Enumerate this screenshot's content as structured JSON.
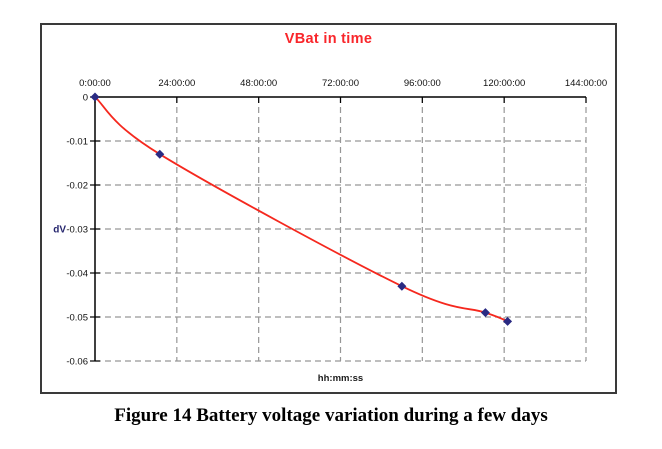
{
  "figure": {
    "caption": "Figure 14 Battery voltage variation during a few days"
  },
  "chart_data": {
    "type": "line",
    "title": "VBat in time",
    "xlabel": "hh:mm:ss",
    "ylabel": "dV",
    "x_axis_position": "top",
    "grid": "dashed",
    "legend": "none",
    "xlim_hours": [
      0,
      144
    ],
    "ylim": [
      -0.06,
      0
    ],
    "x_ticks_hours": [
      0,
      24,
      48,
      72,
      96,
      120,
      144
    ],
    "x_tick_labels": [
      "0:00:00",
      "24:00:00",
      "48:00:00",
      "72:00:00",
      "96:00:00",
      "120:00:00",
      "144:00:00"
    ],
    "y_ticks": [
      0,
      -0.01,
      -0.02,
      -0.03,
      -0.04,
      -0.05,
      -0.06
    ],
    "y_tick_labels": [
      "0",
      "-0.01",
      "-0.02",
      "-0.03",
      "-0.04",
      "-0.05",
      "-0.06"
    ],
    "series": [
      {
        "name": "VBat",
        "smooth": true,
        "line_color": "#f5281e",
        "marker": "diamond",
        "marker_color": "#2a2a82",
        "points_hours_dv": [
          [
            0,
            0
          ],
          [
            19,
            -0.013
          ],
          [
            90,
            -0.043
          ],
          [
            114.5,
            -0.049
          ],
          [
            121,
            -0.051
          ]
        ]
      }
    ],
    "colors": {
      "title": "#f9262b",
      "grid": "#969696",
      "axis": "#000000",
      "tick_text": "#111111",
      "y_axis_title_text": "#26266e",
      "x_axis_title_text": "#1b1b1b"
    }
  }
}
